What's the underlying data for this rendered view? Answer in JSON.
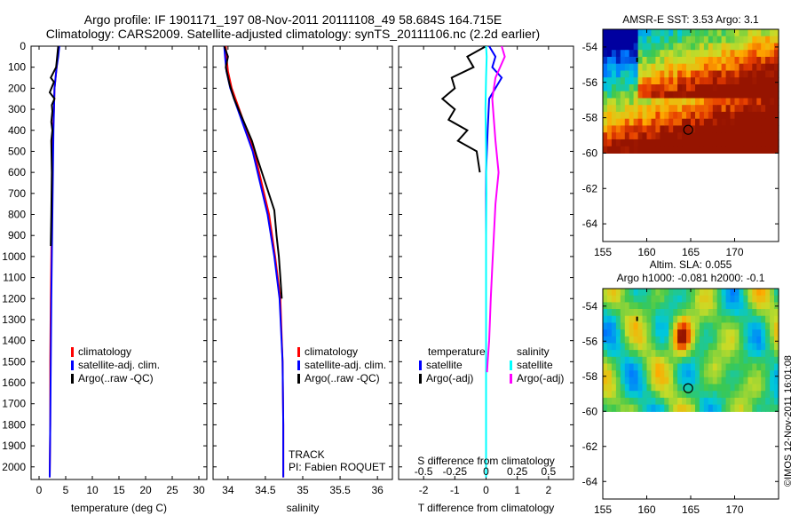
{
  "title_line1": "Argo profile: IF 1901171_197 08-Nov-2011 20111108_49 58.684S 164.715E",
  "title_line2": "Climatology: CARS2009. Satellite-adjusted climatology: synTS_20111106.nc (2.2d earlier)",
  "colors": {
    "climatology": "#ff0000",
    "satellite": "#0000ff",
    "argo": "#000000",
    "cyan": "#00ffff",
    "magenta": "#ff00ff"
  },
  "chart_data": [
    {
      "id": "temperature",
      "type": "line",
      "xlabel": "temperature (deg C)",
      "xlim": [
        -1.5,
        31.5
      ],
      "ylim": [
        0,
        2060
      ],
      "xticks": [
        0,
        5,
        10,
        15,
        20,
        25,
        30
      ],
      "yticks": [
        0,
        100,
        200,
        300,
        400,
        500,
        600,
        700,
        800,
        900,
        1000,
        1100,
        1200,
        1300,
        1400,
        1500,
        1600,
        1700,
        1800,
        1900,
        2000
      ],
      "legend": [
        "climatology",
        "satellite-adj. clim.",
        "Argo(..raw -QC)"
      ],
      "series": [
        {
          "name": "climatology",
          "color": "#ff0000",
          "x": [
            3.6,
            3.5,
            3.3,
            3.1,
            2.9,
            2.8,
            2.6,
            2.5,
            2.4,
            2.3,
            2.2,
            2.1,
            2.1,
            2.0
          ],
          "y": [
            0,
            50,
            100,
            150,
            200,
            300,
            400,
            600,
            800,
            1000,
            1200,
            1500,
            1800,
            2050
          ]
        },
        {
          "name": "satellite-adj. clim.",
          "color": "#0000ff",
          "x": [
            3.8,
            3.6,
            3.3,
            3.1,
            2.9,
            2.8,
            2.7,
            2.6,
            2.5,
            2.4,
            2.3,
            2.2,
            2.1,
            2.0
          ],
          "y": [
            0,
            50,
            100,
            150,
            200,
            300,
            400,
            600,
            800,
            1000,
            1200,
            1500,
            1800,
            2050
          ]
        },
        {
          "name": "Argo(..raw -QC)",
          "color": "#000000",
          "x": [
            3.6,
            3.4,
            3.2,
            2.2,
            2.8,
            2.0,
            2.9,
            2.4,
            2.5,
            2.3,
            2.5,
            2.3,
            2.4,
            2.3,
            2.2
          ],
          "y": [
            0,
            50,
            100,
            150,
            170,
            220,
            250,
            280,
            310,
            360,
            400,
            450,
            600,
            800,
            950
          ]
        }
      ]
    },
    {
      "id": "salinity",
      "type": "line",
      "xlabel": "salinity",
      "xlim": [
        33.8,
        36.2
      ],
      "ylim": [
        0,
        2060
      ],
      "xticks": [
        34,
        34.5,
        35,
        35.5,
        36
      ],
      "legend": [
        "climatology",
        "satellite-adj. clim.",
        "Argo(..raw -QC)"
      ],
      "annotations": [
        "TRACK",
        "PI: Fabien ROQUET"
      ],
      "series": [
        {
          "name": "climatology",
          "color": "#ff0000",
          "x": [
            33.97,
            33.98,
            34.0,
            34.05,
            34.15,
            34.25,
            34.35,
            34.45,
            34.55,
            34.63,
            34.7,
            34.73,
            34.74,
            34.74
          ],
          "y": [
            0,
            50,
            120,
            200,
            300,
            400,
            500,
            650,
            800,
            1000,
            1200,
            1500,
            1800,
            2050
          ]
        },
        {
          "name": "satellite-adj. clim.",
          "color": "#0000ff",
          "x": [
            33.95,
            33.96,
            33.98,
            34.03,
            34.13,
            34.23,
            34.33,
            34.43,
            34.53,
            34.62,
            34.69,
            34.73,
            34.74,
            34.74
          ],
          "y": [
            0,
            50,
            120,
            200,
            300,
            400,
            500,
            650,
            800,
            1000,
            1200,
            1500,
            1800,
            2050
          ]
        },
        {
          "name": "Argo(..raw -QC)",
          "color": "#000000",
          "x": [
            33.95,
            34.0,
            33.97,
            34.02,
            34.08,
            34.2,
            34.32,
            34.38,
            34.5,
            34.62,
            34.65,
            34.68,
            34.7,
            34.72
          ],
          "y": [
            0,
            50,
            100,
            180,
            250,
            350,
            450,
            520,
            650,
            780,
            900,
            1000,
            1100,
            1200
          ]
        }
      ]
    },
    {
      "id": "difference",
      "type": "line",
      "xlabel": "T difference from climatology",
      "xlabel_top": "S difference from climatology",
      "xlim": [
        -2.8,
        2.8
      ],
      "ylim": [
        0,
        2060
      ],
      "xticks": [
        -2,
        -1,
        0,
        1,
        2
      ],
      "xticks_top": [
        "-0.5",
        "-0.25",
        "0",
        "0.25",
        "0.5"
      ],
      "legend_left_title": "temperature",
      "legend_right_title": "salinity",
      "legend_left": [
        "satellite",
        "Argo(-adj)"
      ],
      "legend_right": [
        "satellite",
        "Argo(-adj)"
      ],
      "series": [
        {
          "name": "temperature satellite",
          "color": "#0000ff",
          "x": [
            0.1,
            0.3,
            0.2,
            0.5,
            0.1,
            0.05,
            0.0,
            0.0,
            0.0,
            0.0,
            0.0,
            0.0,
            0.0
          ],
          "y": [
            0,
            50,
            100,
            150,
            250,
            400,
            600,
            900,
            1200,
            1500,
            1800,
            2000,
            2050
          ]
        },
        {
          "name": "temperature Argo(-adj)",
          "color": "#000000",
          "x": [
            0.0,
            -0.6,
            -0.4,
            -1.1,
            -1.0,
            -1.4,
            -1.0,
            -1.2,
            -0.6,
            -0.9,
            -0.3,
            -0.2
          ],
          "y": [
            0,
            50,
            100,
            150,
            200,
            250,
            300,
            350,
            400,
            450,
            500,
            600
          ]
        },
        {
          "name": "salinity satellite",
          "color": "#00ffff",
          "x": [
            0.0,
            0.02,
            0.0,
            -0.02,
            0.0,
            0.01,
            0.0,
            0.0,
            0.0,
            0.0,
            0.0
          ],
          "y": [
            0,
            50,
            150,
            300,
            500,
            700,
            900,
            1200,
            1500,
            1800,
            2050
          ]
        },
        {
          "name": "salinity Argo(-adj)",
          "color": "#ff00ff",
          "x": [
            0.5,
            0.6,
            0.3,
            0.2,
            0.25,
            0.3,
            0.4,
            0.3,
            0.25,
            0.2,
            0.15,
            0.1,
            0.05,
            0.03
          ],
          "y": [
            0,
            50,
            150,
            250,
            350,
            450,
            600,
            750,
            900,
            1050,
            1200,
            1400,
            1500,
            1550
          ]
        }
      ]
    },
    {
      "id": "sst_map",
      "type": "heatmap",
      "title": "AMSR-E SST: 3.53 Argo: 3.1",
      "xlim": [
        155,
        175
      ],
      "ylim": [
        -65,
        -53
      ],
      "xticks": [
        155,
        160,
        165,
        170
      ],
      "yticks": [
        -54,
        -56,
        -58,
        -60,
        -62,
        -64
      ],
      "data_extent_lat": [
        -60,
        -53
      ],
      "argo_position": {
        "lon": 164.715,
        "lat": -58.684
      }
    },
    {
      "id": "sla_map",
      "type": "heatmap",
      "title": "Altim. SLA: 0.055",
      "subtitle": "Argo h1000: -0.081 h2000: -0.1",
      "xlim": [
        155,
        175
      ],
      "ylim": [
        -65,
        -53
      ],
      "xticks": [
        155,
        160,
        165,
        170
      ],
      "yticks": [
        -54,
        -56,
        -58,
        -60,
        -62,
        -64
      ],
      "data_extent_lat": [
        -60,
        -53
      ],
      "argo_position": {
        "lon": 164.715,
        "lat": -58.684
      }
    }
  ],
  "footer_credit": "©IMOS 12-Nov-2011 16:01:08"
}
